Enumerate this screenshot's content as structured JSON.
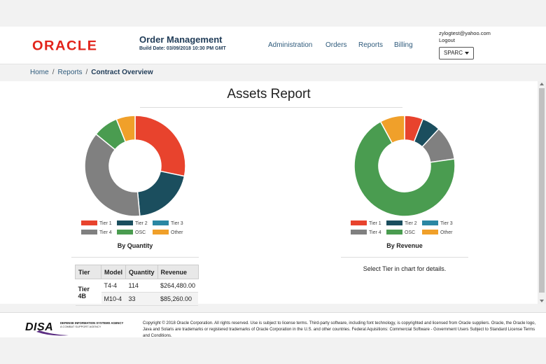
{
  "header": {
    "logo_text": "ORACLE",
    "app_title": "Order Management",
    "build_date": "Build Date: 03/09/2018 10:30 PM GMT",
    "nav": [
      "Administration",
      "Orders",
      "Reports",
      "Billing"
    ],
    "user_email": "zylogtest@yahoo.com",
    "logout": "Logout",
    "org_select": "SPARC"
  },
  "breadcrumb": {
    "home": "Home",
    "reports": "Reports",
    "current": "Contract Overview"
  },
  "report": {
    "title": "Assets Report",
    "details_message": "Select Tier in chart for details."
  },
  "colors": {
    "tier1": "#e8432d",
    "tier2": "#1b4e5e",
    "tier3": "#2b87a3",
    "tier4": "#808080",
    "osc": "#4a9c50",
    "other": "#f0a02a"
  },
  "chart_data": [
    {
      "type": "donut",
      "title": "By Quantity",
      "categories": [
        "Tier 1",
        "Tier 2",
        "Tier 3",
        "Tier 4",
        "OSC",
        "Other"
      ],
      "values": [
        28,
        20,
        0,
        37,
        8,
        6
      ],
      "legend": "bottom"
    },
    {
      "type": "donut",
      "title": "By Revenue",
      "categories": [
        "Tier 1",
        "Tier 2",
        "Tier 3",
        "Tier 4",
        "OSC",
        "Other"
      ],
      "values": [
        6,
        6,
        0,
        11,
        70,
        8
      ],
      "legend": "bottom"
    }
  ],
  "table": {
    "headers": [
      "Tier",
      "Model",
      "Quantity",
      "Revenue"
    ],
    "tier": "Tier 4B",
    "rows": [
      {
        "model": "T4-4",
        "quantity": "114",
        "revenue": "$264,480.00"
      },
      {
        "model": "M10-4",
        "quantity": "33",
        "revenue": "$85,260.00"
      }
    ]
  },
  "footer": {
    "disa_logo": "DISA",
    "disa_name": "DEFENSE INFORMATION SYSTEMS AGENCY",
    "disa_sub": "A COMBAT SUPPORT AGENCY",
    "copyright": "Copyright © 2018 Oracle Corporation. All rights reserved. Use is subject to license terms. Third-party software, including font technology, is copyrighted and licensed from Oracle suppliers. Oracle, the Oracle logo, Java and Solaris are trademarks or registered trademarks of Oracle Corporation in the U.S. and other countries. Federal Aquisitions: Commercial Software - Government Users Subject to Standard License Terms and Conditions."
  }
}
